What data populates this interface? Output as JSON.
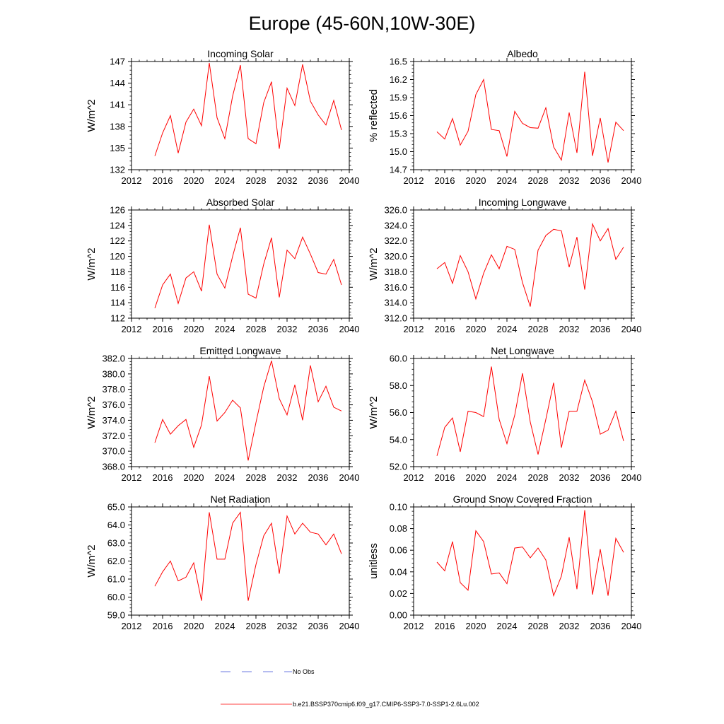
{
  "figure_title": "Europe (45-60N,10W-30E)",
  "legend": {
    "obs_label": "No Obs",
    "obs_color": "#3b4fd8",
    "model_label": "b.e21.BSSP370cmip6.f09_g17.CMIP6-SSP3-7.0-SSP1-2.6Lu.002",
    "model_color": "#ff0000"
  },
  "chart_data": [
    {
      "type": "line",
      "title": "Incoming Solar",
      "ylabel": "W/m^2",
      "xlim": [
        2012,
        2040
      ],
      "xticks": [
        "2012",
        "2016",
        "2020",
        "2024",
        "2028",
        "2032",
        "2036",
        "2040"
      ],
      "ylim": [
        132,
        147
      ],
      "yticks": [
        "132",
        "135",
        "138",
        "141",
        "144",
        "147"
      ],
      "x": [
        2015,
        2016,
        2017,
        2018,
        2019,
        2020,
        2021,
        2022,
        2023,
        2024,
        2025,
        2026,
        2027,
        2028,
        2029,
        2030,
        2031,
        2032,
        2033,
        2034,
        2035,
        2036,
        2037,
        2038,
        2039
      ],
      "series": [
        {
          "color": "#ff0000",
          "values": [
            133.9,
            137.1,
            139.5,
            134.3,
            138.6,
            140.4,
            138.1,
            146.8,
            139.2,
            136.3,
            142.2,
            146.5,
            136.3,
            135.6,
            141.3,
            144.2,
            134.9,
            143.3,
            140.9,
            146.6,
            141.5,
            139.6,
            138.2,
            141.6,
            137.5
          ]
        }
      ]
    },
    {
      "type": "line",
      "title": "Albedo",
      "ylabel": "% reflected",
      "xlim": [
        2012,
        2040
      ],
      "xticks": [
        "2012",
        "2016",
        "2020",
        "2024",
        "2028",
        "2032",
        "2036",
        "2040"
      ],
      "ylim": [
        14.7,
        16.5
      ],
      "yticks": [
        "14.7",
        "15.0",
        "15.3",
        "15.6",
        "15.9",
        "16.2",
        "16.5"
      ],
      "x": [
        2015,
        2016,
        2017,
        2018,
        2019,
        2020,
        2021,
        2022,
        2023,
        2024,
        2025,
        2026,
        2027,
        2028,
        2029,
        2030,
        2031,
        2032,
        2033,
        2034,
        2035,
        2036,
        2037,
        2038,
        2039
      ],
      "series": [
        {
          "color": "#ff0000",
          "values": [
            15.33,
            15.21,
            15.55,
            15.11,
            15.34,
            15.95,
            16.2,
            15.37,
            15.35,
            14.92,
            15.67,
            15.47,
            15.4,
            15.39,
            15.73,
            15.08,
            14.86,
            15.65,
            14.98,
            16.33,
            14.93,
            15.56,
            14.82,
            15.49,
            15.35
          ]
        }
      ]
    },
    {
      "type": "line",
      "title": "Absorbed Solar",
      "ylabel": "W/m^2",
      "xlim": [
        2012,
        2040
      ],
      "xticks": [
        "2012",
        "2016",
        "2020",
        "2024",
        "2028",
        "2032",
        "2036",
        "2040"
      ],
      "ylim": [
        112,
        126
      ],
      "yticks": [
        "112",
        "114",
        "116",
        "118",
        "120",
        "122",
        "124",
        "126"
      ],
      "x": [
        2015,
        2016,
        2017,
        2018,
        2019,
        2020,
        2021,
        2022,
        2023,
        2024,
        2025,
        2026,
        2027,
        2028,
        2029,
        2030,
        2031,
        2032,
        2033,
        2034,
        2035,
        2036,
        2037,
        2038,
        2039
      ],
      "series": [
        {
          "color": "#ff0000",
          "values": [
            113.3,
            116.3,
            117.7,
            113.9,
            117.2,
            118.0,
            115.5,
            124.1,
            117.7,
            115.9,
            120.0,
            123.7,
            115.1,
            114.6,
            119.0,
            122.4,
            114.7,
            120.8,
            119.7,
            122.5,
            120.3,
            117.9,
            117.7,
            119.6,
            116.3
          ]
        }
      ]
    },
    {
      "type": "line",
      "title": "Incoming Longwave",
      "ylabel": "W/m^2",
      "xlim": [
        2012,
        2040
      ],
      "xticks": [
        "2012",
        "2016",
        "2020",
        "2024",
        "2028",
        "2032",
        "2036",
        "2040"
      ],
      "ylim": [
        312,
        326
      ],
      "yticks": [
        "312.0",
        "314.0",
        "316.0",
        "318.0",
        "320.0",
        "322.0",
        "324.0",
        "326.0"
      ],
      "x": [
        2015,
        2016,
        2017,
        2018,
        2019,
        2020,
        2021,
        2022,
        2023,
        2024,
        2025,
        2026,
        2027,
        2028,
        2029,
        2030,
        2031,
        2032,
        2033,
        2034,
        2035,
        2036,
        2037,
        2038,
        2039
      ],
      "series": [
        {
          "color": "#ff0000",
          "values": [
            318.4,
            319.2,
            316.5,
            320.1,
            318.0,
            314.5,
            317.8,
            320.2,
            318.4,
            321.3,
            320.9,
            316.6,
            313.5,
            320.8,
            322.7,
            323.5,
            323.3,
            318.6,
            322.5,
            315.7,
            324.2,
            322.0,
            323.6,
            319.6,
            321.2
          ]
        }
      ]
    },
    {
      "type": "line",
      "title": "Emitted Longwave",
      "ylabel": "W/m^2",
      "xlim": [
        2012,
        2040
      ],
      "xticks": [
        "2012",
        "2016",
        "2020",
        "2024",
        "2028",
        "2032",
        "2036",
        "2040"
      ],
      "ylim": [
        368,
        382
      ],
      "yticks": [
        "368.0",
        "370.0",
        "372.0",
        "374.0",
        "376.0",
        "378.0",
        "380.0",
        "382.0"
      ],
      "x": [
        2015,
        2016,
        2017,
        2018,
        2019,
        2020,
        2021,
        2022,
        2023,
        2024,
        2025,
        2026,
        2027,
        2028,
        2029,
        2030,
        2031,
        2032,
        2033,
        2034,
        2035,
        2036,
        2037,
        2038,
        2039
      ],
      "series": [
        {
          "color": "#ff0000",
          "values": [
            371.1,
            374.1,
            372.2,
            373.3,
            374.1,
            370.5,
            373.4,
            379.7,
            373.9,
            375.0,
            376.6,
            375.6,
            368.8,
            373.7,
            378.3,
            381.7,
            376.8,
            374.7,
            378.6,
            374.0,
            381.1,
            376.4,
            378.4,
            375.7,
            375.2
          ]
        }
      ]
    },
    {
      "type": "line",
      "title": "Net Longwave",
      "ylabel": "W/m^2",
      "xlim": [
        2012,
        2040
      ],
      "xticks": [
        "2012",
        "2016",
        "2020",
        "2024",
        "2028",
        "2032",
        "2036",
        "2040"
      ],
      "ylim": [
        52,
        60
      ],
      "yticks": [
        "52.0",
        "54.0",
        "56.0",
        "58.0",
        "60.0"
      ],
      "x": [
        2015,
        2016,
        2017,
        2018,
        2019,
        2020,
        2021,
        2022,
        2023,
        2024,
        2025,
        2026,
        2027,
        2028,
        2029,
        2030,
        2031,
        2032,
        2033,
        2034,
        2035,
        2036,
        2037,
        2038,
        2039
      ],
      "series": [
        {
          "color": "#ff0000",
          "values": [
            52.8,
            54.9,
            55.6,
            53.1,
            56.1,
            56.0,
            55.7,
            59.4,
            55.5,
            53.7,
            55.8,
            58.9,
            55.3,
            52.9,
            55.5,
            58.2,
            53.4,
            56.1,
            56.1,
            58.4,
            56.8,
            54.4,
            54.7,
            56.1,
            53.9
          ]
        }
      ]
    },
    {
      "type": "line",
      "title": "Net Radiation",
      "ylabel": "W/m^2",
      "xlim": [
        2012,
        2040
      ],
      "xticks": [
        "2012",
        "2016",
        "2020",
        "2024",
        "2028",
        "2032",
        "2036",
        "2040"
      ],
      "ylim": [
        59,
        65
      ],
      "yticks": [
        "59.0",
        "60.0",
        "61.0",
        "62.0",
        "63.0",
        "64.0",
        "65.0"
      ],
      "x": [
        2015,
        2016,
        2017,
        2018,
        2019,
        2020,
        2021,
        2022,
        2023,
        2024,
        2025,
        2026,
        2027,
        2028,
        2029,
        2030,
        2031,
        2032,
        2033,
        2034,
        2035,
        2036,
        2037,
        2038,
        2039
      ],
      "series": [
        {
          "color": "#ff0000",
          "values": [
            60.6,
            61.4,
            62.0,
            60.9,
            61.1,
            61.9,
            59.8,
            64.7,
            62.1,
            62.1,
            64.1,
            64.7,
            59.8,
            61.8,
            63.4,
            64.1,
            61.3,
            64.5,
            63.5,
            64.1,
            63.6,
            63.5,
            62.9,
            63.5,
            62.4
          ]
        }
      ]
    },
    {
      "type": "line",
      "title": "Ground Snow Covered Fraction",
      "ylabel": "unitless",
      "xlim": [
        2012,
        2040
      ],
      "xticks": [
        "2012",
        "2016",
        "2020",
        "2024",
        "2028",
        "2032",
        "2036",
        "2040"
      ],
      "ylim": [
        0,
        0.1
      ],
      "yticks": [
        "0.00",
        "0.02",
        "0.04",
        "0.06",
        "0.08",
        "0.10"
      ],
      "x": [
        2015,
        2016,
        2017,
        2018,
        2019,
        2020,
        2021,
        2022,
        2023,
        2024,
        2025,
        2026,
        2027,
        2028,
        2029,
        2030,
        2031,
        2032,
        2033,
        2034,
        2035,
        2036,
        2037,
        2038,
        2039
      ],
      "series": [
        {
          "color": "#ff0000",
          "values": [
            0.049,
            0.041,
            0.068,
            0.03,
            0.023,
            0.078,
            0.068,
            0.038,
            0.039,
            0.029,
            0.062,
            0.063,
            0.053,
            0.062,
            0.051,
            0.018,
            0.036,
            0.072,
            0.024,
            0.097,
            0.019,
            0.061,
            0.018,
            0.071,
            0.058
          ]
        }
      ]
    }
  ]
}
